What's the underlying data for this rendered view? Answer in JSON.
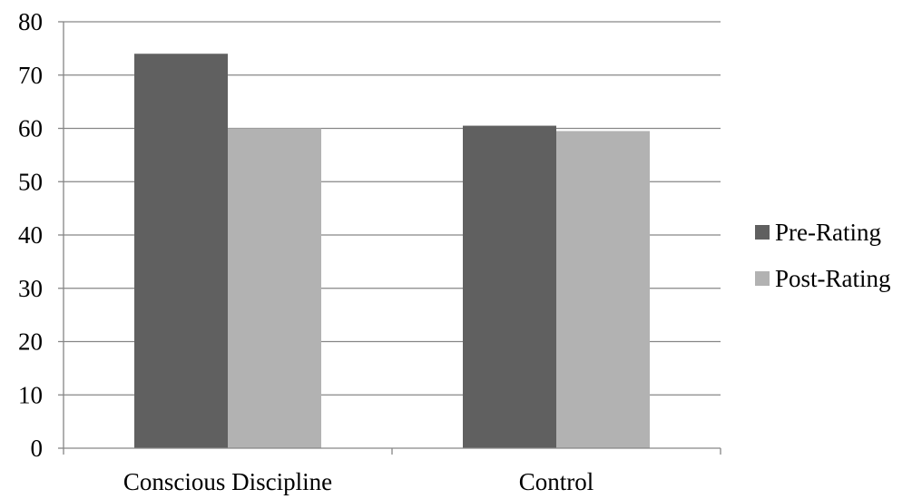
{
  "chart_data": {
    "type": "bar",
    "title": "",
    "xlabel": "",
    "ylabel": "",
    "categories": [
      "Conscious Discipline",
      "Control"
    ],
    "series": [
      {
        "name": "Pre-Rating",
        "values": [
          74,
          60.5
        ],
        "color": "#606060"
      },
      {
        "name": "Post-Rating",
        "values": [
          60,
          59.5
        ],
        "color": "#b2b2b2"
      }
    ],
    "ylim": [
      0,
      80
    ],
    "yticks": [
      0,
      10,
      20,
      30,
      40,
      50,
      60,
      70,
      80
    ],
    "grid": true,
    "gridline_color": "#868686",
    "legend_position": "right"
  }
}
